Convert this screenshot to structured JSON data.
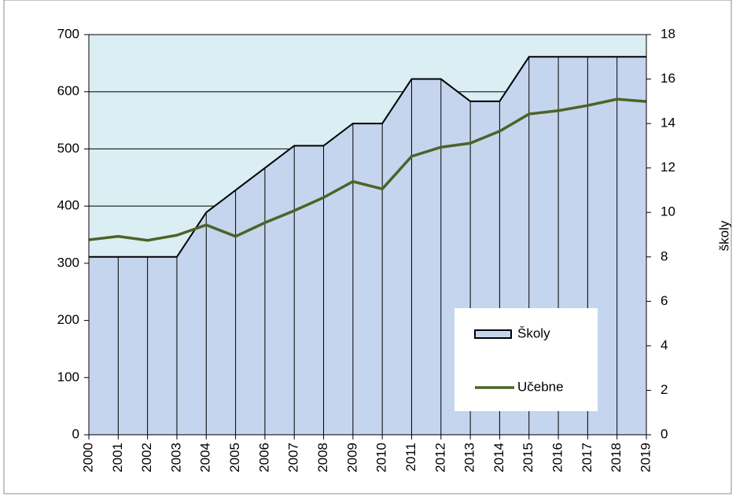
{
  "chart_data": {
    "type": "area",
    "categories": [
      "2000",
      "2001",
      "2002",
      "2003",
      "2004",
      "2005",
      "2006",
      "2007",
      "2008",
      "2009",
      "2010",
      "2011",
      "2012",
      "2013",
      "2014",
      "2015",
      "2016",
      "2017",
      "2018",
      "2019"
    ],
    "series": [
      {
        "name": "Školy",
        "type": "area",
        "axis": "y2",
        "color": "#c5d5ee",
        "values": [
          8,
          8,
          8,
          8,
          10,
          11,
          12,
          13,
          13,
          14,
          14,
          16,
          16,
          15,
          15,
          17,
          17,
          17,
          17,
          17
        ]
      },
      {
        "name": "Učebne",
        "type": "line",
        "color": "#4f6228",
        "values": [
          341,
          347,
          340,
          349,
          367,
          347,
          371,
          392,
          415,
          443,
          430,
          487,
          503,
          510,
          531,
          561,
          567,
          576,
          587,
          583
        ]
      }
    ],
    "ylim": [
      0,
      700
    ],
    "yticks": [
      0,
      100,
      200,
      300,
      400,
      500,
      600,
      700
    ],
    "y2lim": [
      0,
      18
    ],
    "y2ticks": [
      0,
      2,
      4,
      6,
      8,
      10,
      12,
      14,
      16,
      18
    ],
    "y2label": "školy",
    "grid": true,
    "plot_background": "#daeef3"
  }
}
